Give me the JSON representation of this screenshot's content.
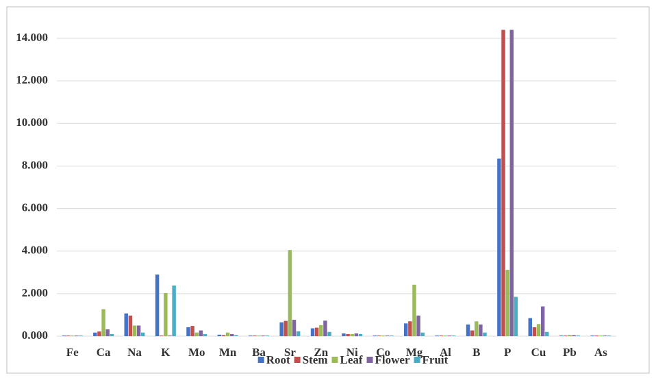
{
  "chart_data": {
    "type": "bar",
    "categories": [
      "Fe",
      "Ca",
      "Na",
      "K",
      "Mo",
      "Mn",
      "Ba",
      "Sr",
      "Zn",
      "Ni",
      "Co",
      "Mg",
      "Al",
      "B",
      "P",
      "Cu",
      "Pb",
      "As"
    ],
    "series": [
      {
        "name": "Root",
        "color": "#4472c4",
        "values": [
          0.03,
          0.17,
          1.07,
          2.9,
          0.42,
          0.07,
          0.03,
          0.65,
          0.37,
          0.13,
          0.03,
          0.6,
          0.03,
          0.55,
          8.35,
          0.85,
          0.03,
          0.03
        ]
      },
      {
        "name": "Stem",
        "color": "#c0504d",
        "values": [
          0.03,
          0.22,
          0.97,
          0.03,
          0.48,
          0.05,
          0.03,
          0.72,
          0.4,
          0.1,
          0.03,
          0.7,
          0.03,
          0.27,
          14.4,
          0.42,
          0.03,
          0.03
        ]
      },
      {
        "name": "Leaf",
        "color": "#9bbb59",
        "values": [
          0.03,
          1.27,
          0.5,
          2.03,
          0.17,
          0.17,
          0.03,
          4.05,
          0.52,
          0.1,
          0.03,
          2.42,
          0.03,
          0.7,
          3.12,
          0.57,
          0.06,
          0.03
        ]
      },
      {
        "name": "Flower",
        "color": "#8064a2",
        "values": [
          0.03,
          0.32,
          0.5,
          0.03,
          0.27,
          0.1,
          0.03,
          0.77,
          0.73,
          0.13,
          0.03,
          0.97,
          0.03,
          0.55,
          14.4,
          1.4,
          0.05,
          0.03
        ]
      },
      {
        "name": "Fruit",
        "color": "#4bacc6",
        "values": [
          0.03,
          0.1,
          0.17,
          2.38,
          0.1,
          0.05,
          0.03,
          0.23,
          0.2,
          0.1,
          0.03,
          0.17,
          0.03,
          0.17,
          1.85,
          0.2,
          0.03,
          0.03
        ]
      }
    ],
    "ylim": [
      0,
      14.5
    ],
    "yticks": [
      {
        "value": 0,
        "label": "0.000"
      },
      {
        "value": 2,
        "label": "2.000"
      },
      {
        "value": 4,
        "label": "4.000"
      },
      {
        "value": 6,
        "label": "6.000"
      },
      {
        "value": 8,
        "label": "8.000"
      },
      {
        "value": 10,
        "label": "10.000"
      },
      {
        "value": 12,
        "label": "12.000"
      },
      {
        "value": 14,
        "label": "14.000"
      }
    ],
    "grid": true,
    "legend": "bottom"
  }
}
